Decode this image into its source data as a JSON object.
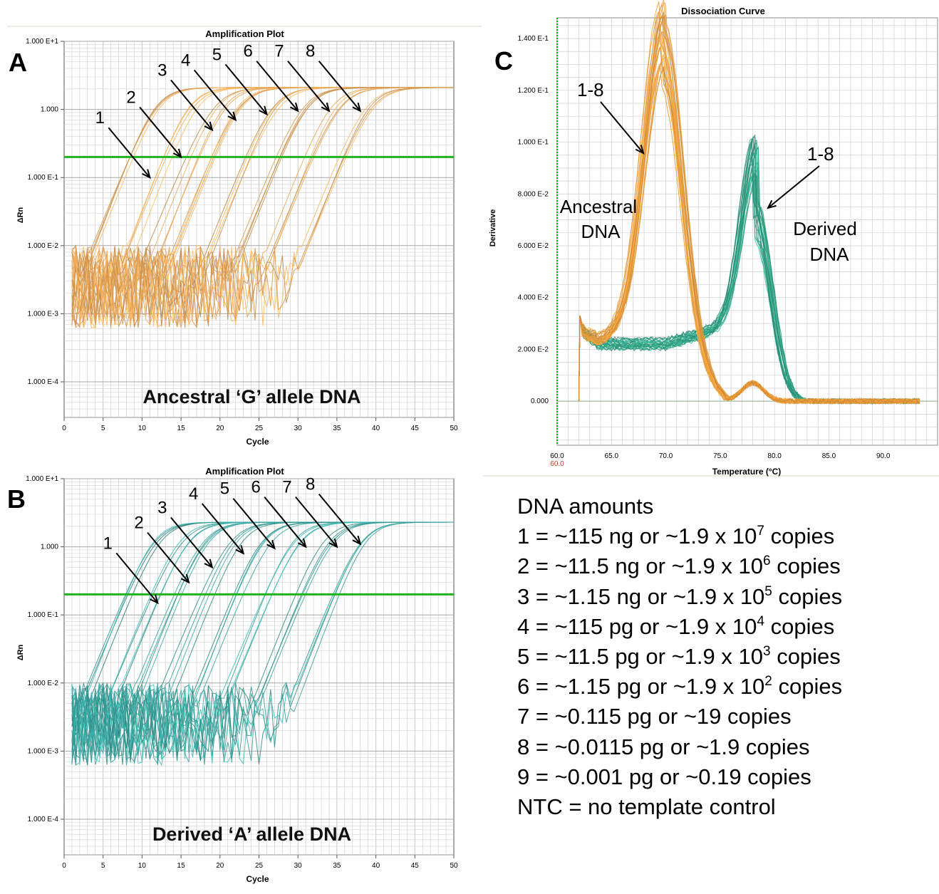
{
  "chart_data": [
    {
      "panel": "A",
      "type": "line",
      "title": "Amplification Plot",
      "xlabel": "Cycle",
      "ylabel": "ΔRn",
      "xlim": [
        0,
        50
      ],
      "y_scale": "log",
      "ylim": [
        3e-05,
        10
      ],
      "x_ticks": [
        "0",
        "5",
        "10",
        "15",
        "20",
        "25",
        "30",
        "35",
        "40",
        "45",
        "50"
      ],
      "y_ticks": [
        {
          "value": 10,
          "label": "1.000 E+1"
        },
        {
          "value": 1,
          "label": "1.000"
        },
        {
          "value": 0.1,
          "label": "1.000 E-1"
        },
        {
          "value": 0.01,
          "label": "1.000 E-2"
        },
        {
          "value": 0.001,
          "label": "1.000 E-3"
        },
        {
          "value": 0.0001,
          "label": "1.000 E-4"
        }
      ],
      "threshold": 0.2,
      "annotation": "Ancestral ‘G’ allele DNA",
      "curve_color": "#c98f4a",
      "threshold_color": "#1fb31f",
      "grid": true,
      "series": [
        {
          "values": {
            "midpoint_cycle": 12.5,
            "plateau": 2.1
          }
        },
        {
          "values": {
            "midpoint_cycle": 16.5,
            "plateau": 2.1
          }
        },
        {
          "values": {
            "midpoint_cycle": 20.0,
            "plateau": 2.1
          }
        },
        {
          "values": {
            "midpoint_cycle": 23.0,
            "plateau": 2.1
          }
        },
        {
          "values": {
            "midpoint_cycle": 27.0,
            "plateau": 2.1
          }
        },
        {
          "values": {
            "midpoint_cycle": 31.0,
            "plateau": 2.1
          }
        },
        {
          "values": {
            "midpoint_cycle": 35.0,
            "plateau": 2.1
          }
        },
        {
          "values": {
            "midpoint_cycle": 39.0,
            "plateau": 2.1
          }
        }
      ],
      "callouts": [
        {
          "label": "1",
          "cycle": 11,
          "value": 0.1
        },
        {
          "label": "2",
          "cycle": 15,
          "value": 0.2
        },
        {
          "label": "3",
          "cycle": 19,
          "value": 0.5
        },
        {
          "label": "4",
          "cycle": 22,
          "value": 0.7
        },
        {
          "label": "5",
          "cycle": 26,
          "value": 0.85
        },
        {
          "label": "6",
          "cycle": 30,
          "value": 0.95
        },
        {
          "label": "7",
          "cycle": 34,
          "value": 0.95
        },
        {
          "label": "8",
          "cycle": 38,
          "value": 0.95
        }
      ]
    },
    {
      "panel": "B",
      "type": "line",
      "title": "Amplification Plot",
      "xlabel": "Cycle",
      "ylabel": "ΔRn",
      "xlim": [
        0,
        50
      ],
      "y_scale": "log",
      "ylim": [
        3e-05,
        10
      ],
      "x_ticks": [
        "0",
        "5",
        "10",
        "15",
        "20",
        "25",
        "30",
        "35",
        "40",
        "45",
        "50"
      ],
      "y_ticks": [
        {
          "value": 10,
          "label": "1.000 E+1"
        },
        {
          "value": 1,
          "label": "1.000"
        },
        {
          "value": 0.1,
          "label": "1.000 E-1"
        },
        {
          "value": 0.01,
          "label": "1.000 E-2"
        },
        {
          "value": 0.001,
          "label": "1.000 E-3"
        },
        {
          "value": 0.0001,
          "label": "1.000 E-4"
        }
      ],
      "threshold": 0.2,
      "annotation": "Derived ‘A’ allele DNA",
      "curve_color": "#2f8f8a",
      "threshold_color": "#1fb31f",
      "grid": true,
      "series": [
        {
          "values": {
            "midpoint_cycle": 12.0,
            "plateau": 2.3
          }
        },
        {
          "values": {
            "midpoint_cycle": 15.5,
            "plateau": 2.3
          }
        },
        {
          "values": {
            "midpoint_cycle": 18.5,
            "plateau": 2.3
          }
        },
        {
          "values": {
            "midpoint_cycle": 22.0,
            "plateau": 2.3
          }
        },
        {
          "values": {
            "midpoint_cycle": 26.0,
            "plateau": 2.3
          }
        },
        {
          "values": {
            "midpoint_cycle": 30.0,
            "plateau": 2.3
          }
        },
        {
          "values": {
            "midpoint_cycle": 34.0,
            "plateau": 2.3
          }
        },
        {
          "values": {
            "midpoint_cycle": 38.0,
            "plateau": 2.3
          }
        }
      ],
      "callouts": [
        {
          "label": "1",
          "cycle": 12,
          "value": 0.15
        },
        {
          "label": "2",
          "cycle": 16,
          "value": 0.3
        },
        {
          "label": "3",
          "cycle": 19,
          "value": 0.5
        },
        {
          "label": "4",
          "cycle": 23,
          "value": 0.8
        },
        {
          "label": "5",
          "cycle": 27,
          "value": 0.95
        },
        {
          "label": "6",
          "cycle": 31,
          "value": 1.0
        },
        {
          "label": "7",
          "cycle": 35,
          "value": 1.0
        },
        {
          "label": "8",
          "cycle": 38,
          "value": 1.1
        }
      ]
    },
    {
      "panel": "C",
      "type": "line",
      "title": "Dissociation Curve",
      "xlabel": "Temperature (°C)",
      "ylabel": "Derivative",
      "xlim": [
        60,
        95
      ],
      "ylim": [
        -0.017,
        0.148
      ],
      "x_start_label": "60.0",
      "x_ticks": [
        "60.0",
        "65.0",
        "70.0",
        "75.0",
        "80.0",
        "85.0",
        "90.0"
      ],
      "y_ticks": [
        {
          "value": 0.14,
          "label": "1.400 E-1"
        },
        {
          "value": 0.12,
          "label": "1.200 E-1"
        },
        {
          "value": 0.1,
          "label": "1.000 E-1"
        },
        {
          "value": 0.08,
          "label": "8.000 E-2"
        },
        {
          "value": 0.06,
          "label": "6.000 E-2"
        },
        {
          "value": 0.04,
          "label": "4.000 E-2"
        },
        {
          "value": 0.02,
          "label": "2.000 E-2"
        },
        {
          "value": 0,
          "label": "0.000"
        }
      ],
      "grid": true,
      "series": [
        {
          "color": "#e89a3a",
          "values": {
            "start_temp": 62,
            "end_temp": 93.5,
            "peak_temp": 69.7,
            "peak": 0.137,
            "baseline": 0.022,
            "secondary_peak_temp": 78,
            "secondary_peak": 0.007
          }
        },
        {
          "color": "#2fa88a",
          "values": {
            "start_temp": 62,
            "end_temp": 93.5,
            "peak_temp": 78.3,
            "peak": 0.087,
            "baseline": 0.022
          }
        }
      ],
      "labels": {
        "group1_range": "1-8",
        "group2_range": "1-8",
        "ancestral_line1": "Ancestral",
        "ancestral_line2": "DNA",
        "derived_line1": "Derived",
        "derived_line2": "DNA"
      }
    }
  ],
  "panel_letters": {
    "a": "A",
    "b": "B",
    "c": "C"
  },
  "legend": {
    "title": "DNA amounts",
    "rows": [
      {
        "pre": "1 = ~115 ng or ~1.9 x 10",
        "exp": "7",
        "post": " copies"
      },
      {
        "pre": "2 = ~11.5 ng or ~1.9 x 10",
        "exp": "6",
        "post": " copies"
      },
      {
        "pre": "3 = ~1.15 ng or ~1.9 x 10",
        "exp": "5",
        "post": " copies"
      },
      {
        "pre": "4 = ~115 pg or ~1.9 x 10",
        "exp": "4",
        "post": " copies"
      },
      {
        "pre": "5 = ~11.5 pg or ~1.9 x 10",
        "exp": "3",
        "post": " copies"
      },
      {
        "pre": "6 = ~1.15 pg or ~1.9 x 10",
        "exp": "2",
        "post": " copies"
      },
      {
        "pre": "7 = ~0.115 pg or ~19 copies",
        "exp": "",
        "post": ""
      },
      {
        "pre": "8 = ~0.0115 pg or ~1.9 copies",
        "exp": "",
        "post": ""
      },
      {
        "pre": "9 = ~0.001 pg or ~0.19 copies",
        "exp": "",
        "post": ""
      },
      {
        "pre": "NTC = no template control",
        "exp": "",
        "post": ""
      }
    ]
  }
}
